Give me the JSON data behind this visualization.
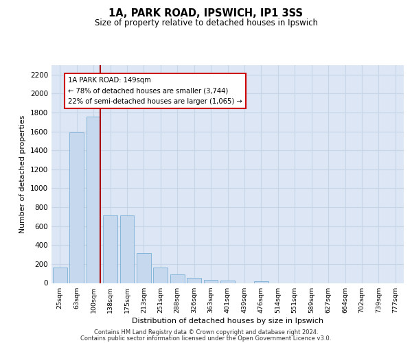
{
  "title_line1": "1A, PARK ROAD, IPSWICH, IP1 3SS",
  "title_line2": "Size of property relative to detached houses in Ipswich",
  "xlabel": "Distribution of detached houses by size in Ipswich",
  "ylabel": "Number of detached properties",
  "categories": [
    "25sqm",
    "63sqm",
    "100sqm",
    "138sqm",
    "175sqm",
    "213sqm",
    "251sqm",
    "288sqm",
    "326sqm",
    "363sqm",
    "401sqm",
    "439sqm",
    "476sqm",
    "514sqm",
    "551sqm",
    "589sqm",
    "627sqm",
    "664sqm",
    "702sqm",
    "739sqm",
    "777sqm"
  ],
  "values": [
    160,
    1590,
    1755,
    710,
    710,
    315,
    160,
    90,
    55,
    35,
    25,
    0,
    20,
    0,
    0,
    0,
    0,
    0,
    0,
    0,
    0
  ],
  "bar_color": "#c5d8ee",
  "bar_edge_color": "#7aafd4",
  "vline_color": "#aa0000",
  "annotation_text": "1A PARK ROAD: 149sqm\n← 78% of detached houses are smaller (3,744)\n22% of semi-detached houses are larger (1,065) →",
  "ylim": [
    0,
    2300
  ],
  "yticks": [
    0,
    200,
    400,
    600,
    800,
    1000,
    1200,
    1400,
    1600,
    1800,
    2000,
    2200
  ],
  "bg_color": "#dce6f5",
  "grid_color": "#c8d4e8",
  "footer_line1": "Contains HM Land Registry data © Crown copyright and database right 2024.",
  "footer_line2": "Contains public sector information licensed under the Open Government Licence v3.0."
}
